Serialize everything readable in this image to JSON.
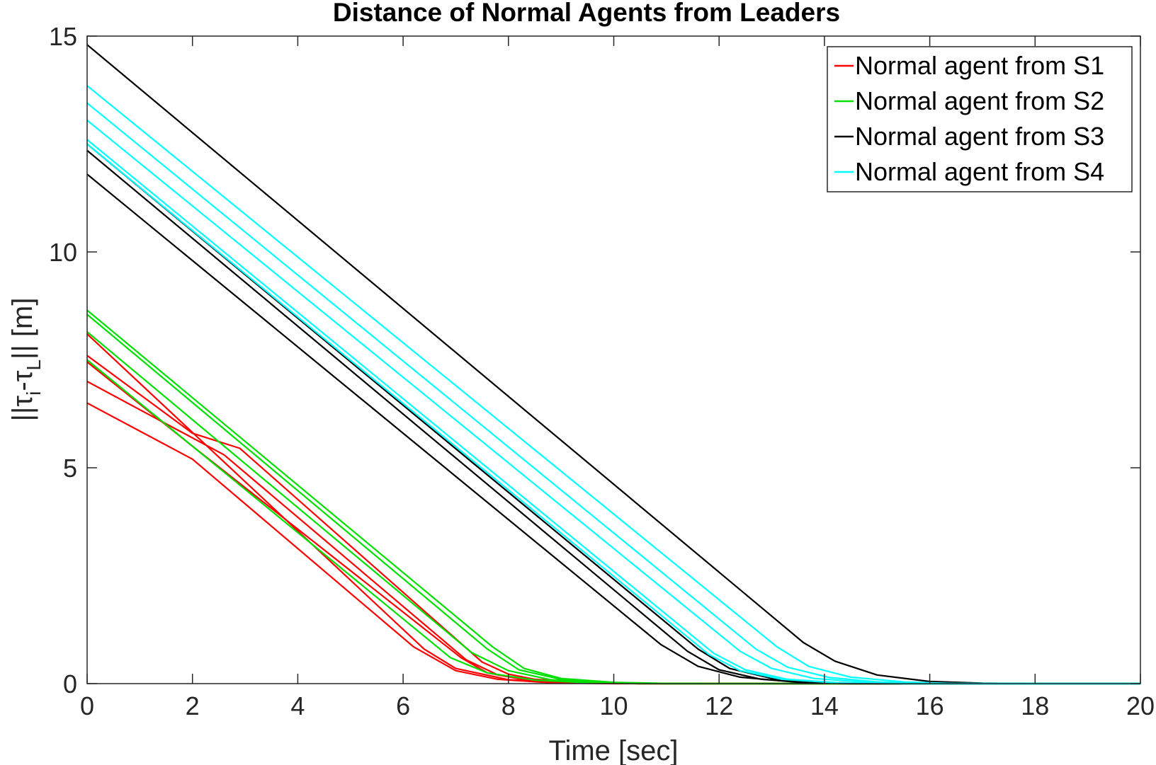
{
  "chart_data": {
    "type": "line",
    "title": "Distance of Normal Agents from Leaders",
    "xlabel": "Time [sec]",
    "ylabel": {
      "main": "||τ",
      "sub1": "i",
      "mid": "-τ",
      "sub2": "L",
      "end": "|| [m]"
    },
    "xlim": [
      0,
      20
    ],
    "ylim": [
      0,
      15
    ],
    "xticks": [
      0,
      2,
      4,
      6,
      8,
      10,
      12,
      14,
      16,
      18,
      20
    ],
    "yticks": [
      0,
      5,
      10,
      15
    ],
    "grid": false,
    "legend_position": "top-right",
    "series": [
      {
        "name": "Normal agent from S1",
        "color": "#ff0000",
        "curves": [
          [
            [
              0,
              8.1
            ],
            [
              6.4,
              0.8
            ],
            [
              7,
              0.35
            ],
            [
              8,
              0.09
            ],
            [
              9,
              0.02
            ],
            [
              10,
              0.005
            ],
            [
              11,
              0
            ],
            [
              20,
              0
            ]
          ],
          [
            [
              0,
              7.6
            ],
            [
              2,
              5.8
            ],
            [
              2.9,
              5.45
            ],
            [
              7.5,
              0.5
            ],
            [
              8,
              0.22
            ],
            [
              8.5,
              0.1
            ],
            [
              9.5,
              0.02
            ],
            [
              10.5,
              0
            ],
            [
              20,
              0
            ]
          ],
          [
            [
              0,
              7.0
            ],
            [
              2.6,
              5.3
            ],
            [
              7.2,
              0.55
            ],
            [
              7.8,
              0.2
            ],
            [
              8.5,
              0.07
            ],
            [
              9.5,
              0.01
            ],
            [
              10.5,
              0
            ],
            [
              20,
              0
            ]
          ],
          [
            [
              0,
              6.5
            ],
            [
              2,
              5.2
            ],
            [
              6.2,
              0.85
            ],
            [
              7,
              0.3
            ],
            [
              7.8,
              0.1
            ],
            [
              8.8,
              0.02
            ],
            [
              10,
              0
            ],
            [
              20,
              0
            ]
          ],
          [
            [
              0,
              7.45
            ],
            [
              2,
              5.5
            ],
            [
              7.1,
              0.6
            ],
            [
              7.6,
              0.25
            ],
            [
              8.3,
              0.09
            ],
            [
              9.3,
              0.02
            ],
            [
              10.5,
              0
            ],
            [
              20,
              0
            ]
          ]
        ]
      },
      {
        "name": "Normal agent from S2",
        "color": "#00e000",
        "curves": [
          [
            [
              0,
              8.65
            ],
            [
              7.7,
              0.85
            ],
            [
              8.3,
              0.35
            ],
            [
              9,
              0.12
            ],
            [
              10,
              0.03
            ],
            [
              11,
              0.005
            ],
            [
              12,
              0
            ],
            [
              20,
              0
            ]
          ],
          [
            [
              0,
              8.55
            ],
            [
              7.6,
              0.8
            ],
            [
              8.2,
              0.32
            ],
            [
              9,
              0.1
            ],
            [
              10,
              0.02
            ],
            [
              11,
              0
            ],
            [
              20,
              0
            ]
          ],
          [
            [
              0,
              8.15
            ],
            [
              7.3,
              0.72
            ],
            [
              8,
              0.3
            ],
            [
              8.8,
              0.09
            ],
            [
              9.8,
              0.02
            ],
            [
              11,
              0
            ],
            [
              20,
              0
            ]
          ],
          [
            [
              0,
              7.5
            ],
            [
              6.9,
              0.6
            ],
            [
              7.6,
              0.25
            ],
            [
              8.5,
              0.08
            ],
            [
              9.5,
              0.02
            ],
            [
              10.5,
              0
            ],
            [
              20,
              0
            ]
          ]
        ]
      },
      {
        "name": "Normal agent from S3",
        "color": "#000000",
        "curves": [
          [
            [
              0,
              14.8
            ],
            [
              13.6,
              0.95
            ],
            [
              14.2,
              0.52
            ],
            [
              15,
              0.2
            ],
            [
              16,
              0.05
            ],
            [
              17,
              0.01
            ],
            [
              18,
              0
            ],
            [
              20,
              0
            ]
          ],
          [
            [
              0,
              12.5
            ],
            [
              11.6,
              0.8
            ],
            [
              12.2,
              0.35
            ],
            [
              13,
              0.12
            ],
            [
              14,
              0.03
            ],
            [
              15,
              0
            ],
            [
              20,
              0
            ]
          ],
          [
            [
              0,
              12.35
            ],
            [
              11.4,
              0.75
            ],
            [
              12,
              0.32
            ],
            [
              12.8,
              0.1
            ],
            [
              13.8,
              0.02
            ],
            [
              15,
              0
            ],
            [
              20,
              0
            ]
          ],
          [
            [
              0,
              11.8
            ],
            [
              10.9,
              0.9
            ],
            [
              11.6,
              0.4
            ],
            [
              12.4,
              0.15
            ],
            [
              13.5,
              0.03
            ],
            [
              14.5,
              0
            ],
            [
              20,
              0
            ]
          ]
        ]
      },
      {
        "name": "Normal agent from S4",
        "color": "#00ffff",
        "curves": [
          [
            [
              0,
              13.85
            ],
            [
              13.1,
              0.85
            ],
            [
              13.7,
              0.4
            ],
            [
              14.5,
              0.15
            ],
            [
              15.5,
              0.04
            ],
            [
              16.5,
              0
            ],
            [
              20,
              0
            ]
          ],
          [
            [
              0,
              13.45
            ],
            [
              12.7,
              0.8
            ],
            [
              13.3,
              0.38
            ],
            [
              14.1,
              0.14
            ],
            [
              15,
              0.04
            ],
            [
              16,
              0
            ],
            [
              20,
              0
            ]
          ],
          [
            [
              0,
              13.05
            ],
            [
              12.4,
              0.75
            ],
            [
              13,
              0.35
            ],
            [
              13.8,
              0.12
            ],
            [
              14.8,
              0.03
            ],
            [
              16,
              0
            ],
            [
              20,
              0
            ]
          ],
          [
            [
              0,
              12.6
            ],
            [
              11.9,
              0.7
            ],
            [
              12.5,
              0.32
            ],
            [
              13.3,
              0.1
            ],
            [
              14.3,
              0.02
            ],
            [
              15.5,
              0
            ],
            [
              20,
              0
            ]
          ],
          [
            [
              0,
              12.5
            ],
            [
              11.8,
              0.68
            ],
            [
              12.4,
              0.3
            ],
            [
              13.2,
              0.1
            ],
            [
              14.2,
              0.02
            ],
            [
              15.5,
              0
            ],
            [
              20,
              0
            ]
          ]
        ]
      }
    ]
  }
}
